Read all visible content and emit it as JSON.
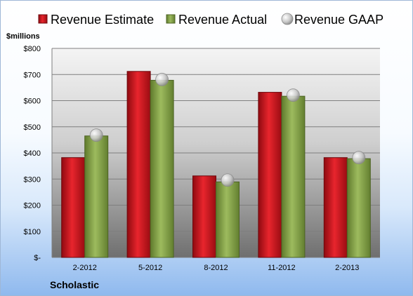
{
  "chart_data": {
    "type": "bar",
    "company": "Scholastic",
    "unit_label": "$millions",
    "categories": [
      "2-2012",
      "5-2012",
      "8-2012",
      "11-2012",
      "2-2013"
    ],
    "series": [
      {
        "name": "Revenue Estimate",
        "kind": "bar",
        "color": "#d3141c",
        "values": [
          382,
          712,
          312,
          632,
          382
        ]
      },
      {
        "name": "Revenue Actual",
        "kind": "bar",
        "color": "#8daa52",
        "values": [
          465,
          678,
          289,
          617,
          378
        ]
      },
      {
        "name": "Revenue GAAP",
        "kind": "marker",
        "color": "#c8c8c8",
        "values": [
          468,
          681,
          296,
          621,
          382
        ]
      }
    ],
    "ylim": [
      0,
      800
    ],
    "yticks": [
      0,
      100,
      200,
      300,
      400,
      500,
      600,
      700,
      800
    ],
    "ytick_labels": [
      "$-",
      "$100",
      "$200",
      "$300",
      "$400",
      "$500",
      "$600",
      "$700",
      "$800"
    ],
    "grid": true,
    "legend_position": "top"
  }
}
